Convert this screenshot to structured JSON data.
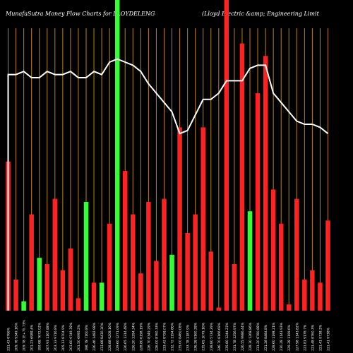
{
  "title": {
    "left": "MunafaSutra  Money Flow  Charts for LLOYDELENG",
    "right": "(Lloyd Electric &amp; Engineering Limit"
  },
  "colors": {
    "background": "#000000",
    "gridline": "#b8860b",
    "up": "#33ff33",
    "down": "#ff2222",
    "line": "#ffffff",
    "label": "#ffffff"
  },
  "chart_data": {
    "type": "bar",
    "title": "MunafaSutra  Money Flow  Charts for LLOYDELENG",
    "ylim": [
      0,
      100
    ],
    "grid": true,
    "categories": [
      "221.43 8766%",
      "209.78 9349.16%",
      "209.78 1E+70.73%",
      "201.23 6988.4%",
      "199.68 7672.02%",
      "207.93 1167.88%",
      "203.33 9716.8%",
      "205.13 8704.9%",
      "203.60 9749.39%",
      "201.50 6995.2%",
      "198.78 7160.8%",
      "226.46 1482.98%",
      "233.88 8430.30%",
      "228.88 9208.16%",
      "229.60 1271.09%",
      "226.65 1314.48%",
      "226.20 1294.34%",
      "228.80 6198.19%",
      "226.70 8349.29%",
      "226.00 8760.33%",
      "233.42 8758.07%",
      "212.72 1194.86%",
      "235.00 8460.08%",
      "233.78 1187.9%",
      "236.28 9160.28%",
      "235.65 1079.16%",
      "238.80 5734.29%",
      "246.70 8166.69%",
      "235.80 1244.23%",
      "231.78 1256.97%",
      "226.55 9986.44%",
      "228.30 1268.86%",
      "231.20 8780.88%",
      "221.28 8484.8%",
      "228.60 1198.21%",
      "230.28 1143.93%",
      "229.28 1199.6%",
      "227.98 1143.82%",
      "221.81 9178.7%",
      "221.48 8760.3%",
      "221.41 9738.2%",
      "221.41 9738%"
    ],
    "series": [
      {
        "values": [
          48,
          10,
          3,
          31,
          17,
          15,
          36,
          13,
          20,
          4,
          35,
          9,
          9,
          28,
          100,
          45,
          31,
          12,
          35,
          16,
          36,
          18,
          59,
          25,
          31,
          59,
          19,
          1,
          100,
          15,
          86,
          32,
          70,
          82,
          39,
          28,
          2,
          36,
          10,
          13,
          9,
          29
        ]
      },
      {
        "values": [
          0,
          0,
          0,
          0,
          0,
          0,
          0,
          0,
          0,
          0,
          0,
          0,
          0,
          0,
          0,
          0,
          0,
          0,
          0,
          0,
          0,
          0,
          0,
          0,
          0,
          0,
          0,
          0,
          0,
          0,
          0,
          0,
          0,
          0,
          0,
          0,
          0,
          0,
          0,
          0,
          0,
          0
        ]
      },
      {
        "values": [
          76,
          76,
          77,
          75,
          75,
          77,
          76,
          76,
          77,
          75,
          75,
          77,
          76,
          80,
          81,
          80,
          79,
          77,
          73,
          70,
          67,
          64,
          57,
          58,
          63,
          68,
          68,
          70,
          74,
          74,
          74,
          78,
          79,
          79,
          70,
          67,
          64,
          61,
          60,
          60,
          59,
          57
        ]
      }
    ],
    "bar_colors": [
      "down",
      "down",
      "up",
      "down",
      "up",
      "down",
      "down",
      "down",
      "down",
      "down",
      "up",
      "down",
      "up",
      "down",
      "up",
      "down",
      "down",
      "down",
      "down",
      "down",
      "down",
      "up",
      "down",
      "down",
      "down",
      "down",
      "down",
      "down",
      "down",
      "down",
      "down",
      "up",
      "down",
      "down",
      "down",
      "down",
      "down",
      "down",
      "down",
      "down",
      "down",
      "down"
    ]
  }
}
